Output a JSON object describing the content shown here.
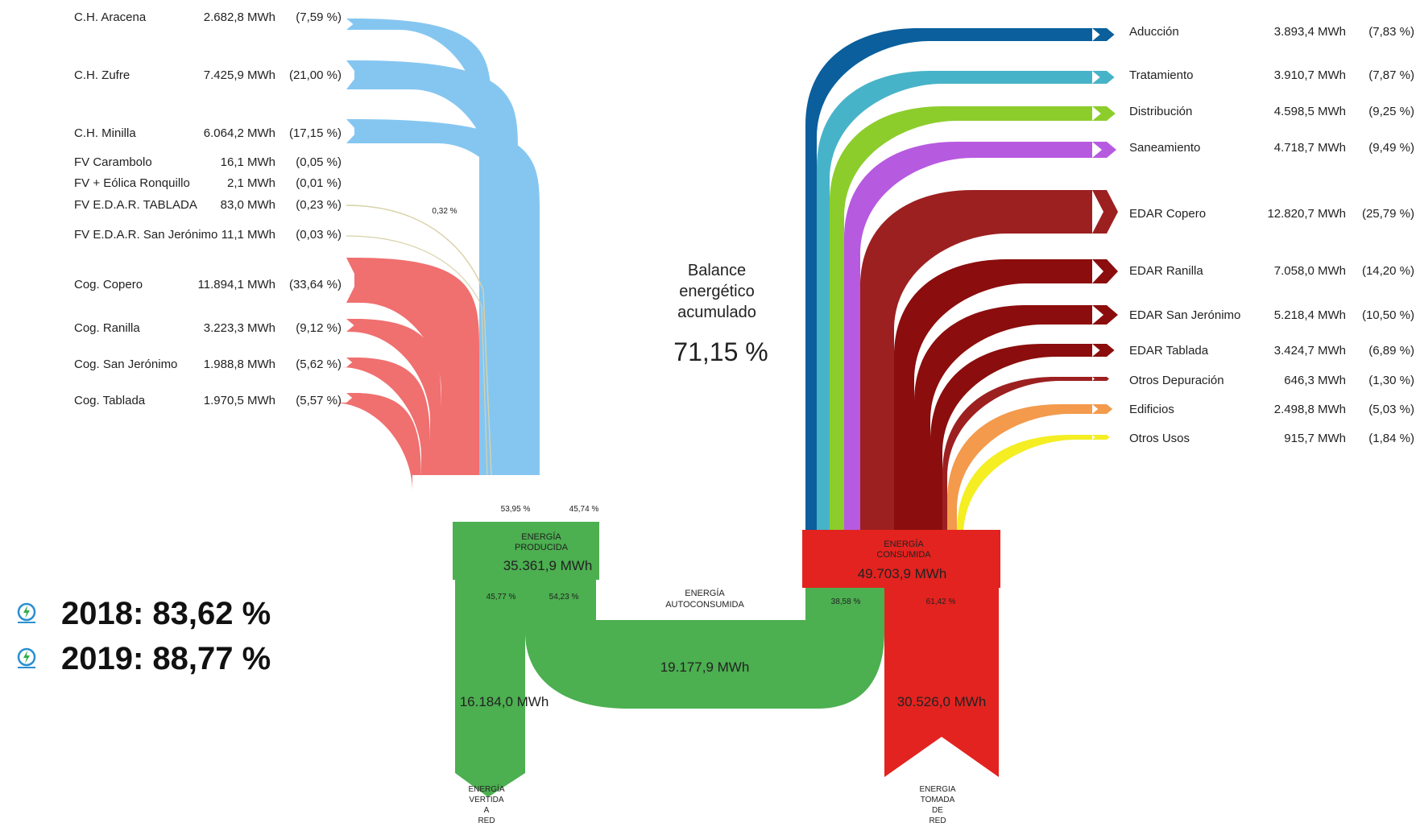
{
  "colors": {
    "hydro": "#85c6f1",
    "cogeneration": "#f06f6f",
    "produced": "#4caf50",
    "consumed": "#e3231f",
    "grid": "#4caf50",
    "adduccion": "#0a5f9c",
    "tratamiento": "#47b3c9",
    "distribucion": "#8ccd2c",
    "saneamiento": "#b65ae0",
    "edar": "#9d2020",
    "edar_dark": "#8b0d0d",
    "edificios": "#f39a4c",
    "otros_usos": "#f4ee23"
  },
  "sources": [
    {
      "name": "C.H. Aracena",
      "value": "2.682,8 MWh",
      "pct": "(7,59 %)"
    },
    {
      "name": "C.H. Zufre",
      "value": "7.425,9 MWh",
      "pct": "(21,00 %)"
    },
    {
      "name": "C.H. Minilla",
      "value": "6.064,2 MWh",
      "pct": "(17,15 %)"
    },
    {
      "name": "FV Carambolo",
      "value": "16,1 MWh",
      "pct": "(0,05 %)"
    },
    {
      "name": "FV + Eólica Ronquillo",
      "value": "2,1 MWh",
      "pct": "(0,01 %)"
    },
    {
      "name": "FV E.D.A.R. TABLADA",
      "value": "83,0 MWh",
      "pct": "(0,23 %)"
    },
    {
      "name": "FV E.D.A.R. San Jerónimo",
      "value": "11,1 MWh",
      "pct": "(0,03 %)"
    },
    {
      "name": "Cog. Copero",
      "value": "11.894,1 MWh",
      "pct": "(33,64 %)"
    },
    {
      "name": "Cog. Ranilla",
      "value": "3.223,3 MWh",
      "pct": "(9,12 %)"
    },
    {
      "name": "Cog. San Jerónimo",
      "value": "1.988,8 MWh",
      "pct": "(5,62 %)"
    },
    {
      "name": "Cog. Tablada",
      "value": "1.970,5 MWh",
      "pct": "(5,57 %)"
    }
  ],
  "consumers": [
    {
      "name": "Aducción",
      "value": "3.893,4 MWh",
      "pct": "(7,83 %)"
    },
    {
      "name": "Tratamiento",
      "value": "3.910,7 MWh",
      "pct": "(7,87 %)"
    },
    {
      "name": "Distribución",
      "value": "4.598,5 MWh",
      "pct": "(9,25 %)"
    },
    {
      "name": "Saneamiento",
      "value": "4.718,7 MWh",
      "pct": "(9,49 %)"
    },
    {
      "name": "EDAR Copero",
      "value": "12.820,7 MWh",
      "pct": "(25,79 %)"
    },
    {
      "name": "EDAR Ranilla",
      "value": "7.058,0 MWh",
      "pct": "(14,20 %)"
    },
    {
      "name": "EDAR San Jerónimo",
      "value": "5.218,4 MWh",
      "pct": "(10,50 %)"
    },
    {
      "name": "EDAR Tablada",
      "value": "3.424,7 MWh",
      "pct": "(6,89 %)"
    },
    {
      "name": "Otros Depuración",
      "value": "646,3 MWh",
      "pct": "(1,30 %)"
    },
    {
      "name": "Edificios",
      "value": "2.498,8 MWh",
      "pct": "(5,03 %)"
    },
    {
      "name": "Otros Usos",
      "value": "915,7 MWh",
      "pct": "(1,84 %)"
    }
  ],
  "center": {
    "title_l1": "Balance",
    "title_l2": "energético",
    "title_l3": "acumulado",
    "value": "71,15 %"
  },
  "produced": {
    "l1": "ENERGÍA",
    "l2": "PRODUCIDA",
    "value": "35.361,9 MWh",
    "in_cog_pct": "53,95 %",
    "in_hydro_pct": "45,74 %",
    "out_grid_pct": "45,77 %",
    "out_self_pct": "54,23 %",
    "pv_pct": "0,32 %"
  },
  "consumed": {
    "l1": "ENERGÍA",
    "l2": "CONSUMIDA",
    "value": "49.703,9 MWh",
    "in_self_pct": "38,58 %",
    "in_grid_pct": "61,42 %"
  },
  "self": {
    "l1": "ENERGÍA",
    "l2": "AUTOCONSUMIDA",
    "value": "19.177,9 MWh"
  },
  "grid_out": {
    "value": "16.184,0 MWh",
    "l1": "ENERGÍA",
    "l2": "VERTIDA",
    "l3": "A",
    "l4": "RED"
  },
  "grid_in": {
    "value": "30.526,0 MWh",
    "l1": "ENERGIA",
    "l2": "TOMADA",
    "l3": "DE",
    "l4": "RED"
  },
  "years": [
    {
      "label": "2018: 83,62 %",
      "icon": "emasesa-logo-icon"
    },
    {
      "label": "2019: 88,77 %",
      "icon": "emasesa-logo-icon"
    }
  ]
}
